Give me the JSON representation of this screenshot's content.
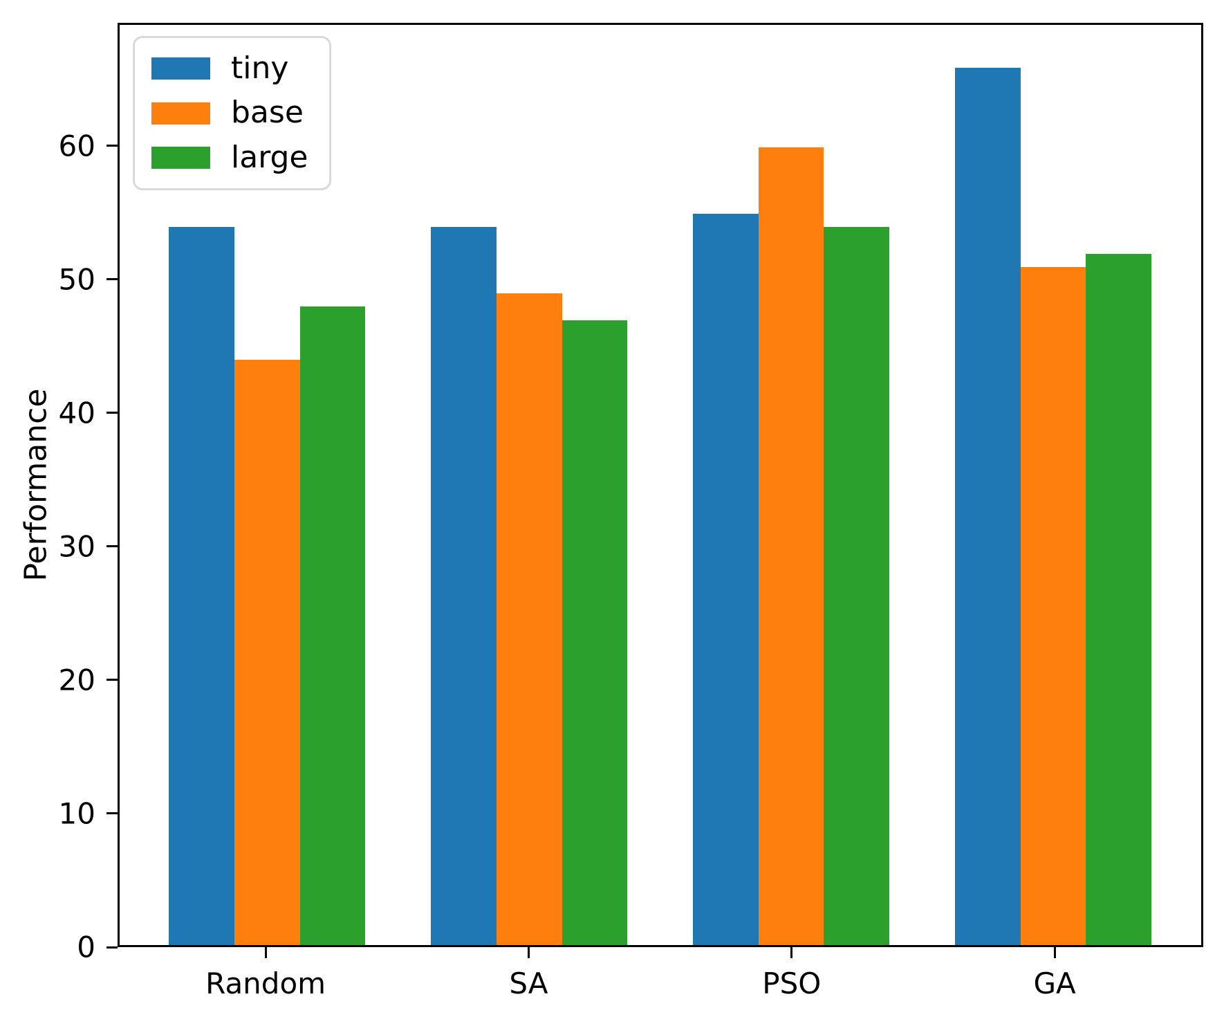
{
  "chart_data": {
    "type": "bar",
    "categories": [
      "Random",
      "SA",
      "PSO",
      "GA"
    ],
    "series": [
      {
        "name": "tiny",
        "color": "#1f77b4",
        "values": [
          54,
          54,
          55,
          66
        ]
      },
      {
        "name": "base",
        "color": "#ff7f0e",
        "values": [
          44,
          49,
          60,
          51
        ]
      },
      {
        "name": "large",
        "color": "#2ca02c",
        "values": [
          48,
          47,
          54,
          52
        ]
      }
    ],
    "title": "",
    "xlabel": "",
    "ylabel": "Performance",
    "yticks": [
      0,
      10,
      20,
      30,
      40,
      50,
      60
    ],
    "ylim": [
      0,
      69.2
    ],
    "legend_position": "upper left",
    "grid": false,
    "axis_color": "#000000",
    "background_color": "#ffffff"
  }
}
